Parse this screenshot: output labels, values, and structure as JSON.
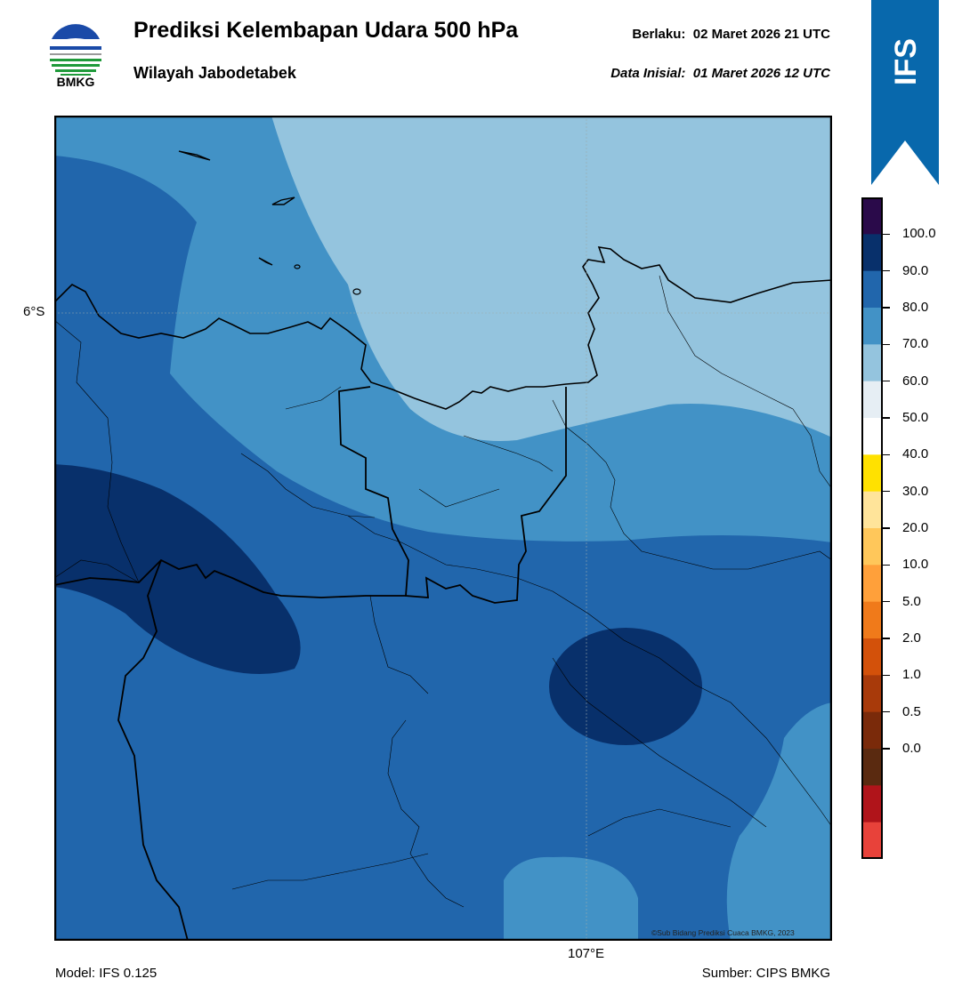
{
  "header": {
    "title": "Prediksi Kelembapan Udara 500 hPa",
    "subtitle": "Wilayah Jabodetabek",
    "valid_label": "Berlaku:",
    "valid_time": "02 Maret 2026 21 UTC",
    "init_label": "Data Inisial:",
    "init_time": "01 Maret 2026 12 UTC",
    "logo_text": "BMKG"
  },
  "badge": {
    "text": "IFS",
    "color": "#0868ac"
  },
  "map": {
    "lat_label": "6°S",
    "lon_label": "107°E",
    "credit": "©Sub Bidang Prediksi Cuaca BMKG, 2023",
    "fill_colors": {
      "60-70": "#94c4de",
      "70-80": "#4292c6",
      "80-90": "#2166ac",
      "90-100": "#08306b"
    }
  },
  "footer": {
    "model": "Model: IFS 0.125",
    "source": "Sumber: CIPS BMKG"
  },
  "colorbar": {
    "ticks": [
      "100.0",
      "90.0",
      "80.0",
      "70.0",
      "60.0",
      "50.0",
      "40.0",
      "30.0",
      "20.0",
      "10.0",
      "5.0",
      "2.0",
      "1.0",
      "0.5",
      "0.0"
    ],
    "colors_top_to_bottom": [
      "#2a0a4a",
      "#08306b",
      "#2166ac",
      "#4292c6",
      "#94c4de",
      "#e6eef4",
      "#ffffff",
      "#ffe100",
      "#ffe49a",
      "#ffc75a",
      "#ffa03a",
      "#f07a1a",
      "#d3510a",
      "#a83a0a",
      "#7a2a0a",
      "#5a2a10",
      "#b0141a",
      "#e8423a"
    ]
  }
}
